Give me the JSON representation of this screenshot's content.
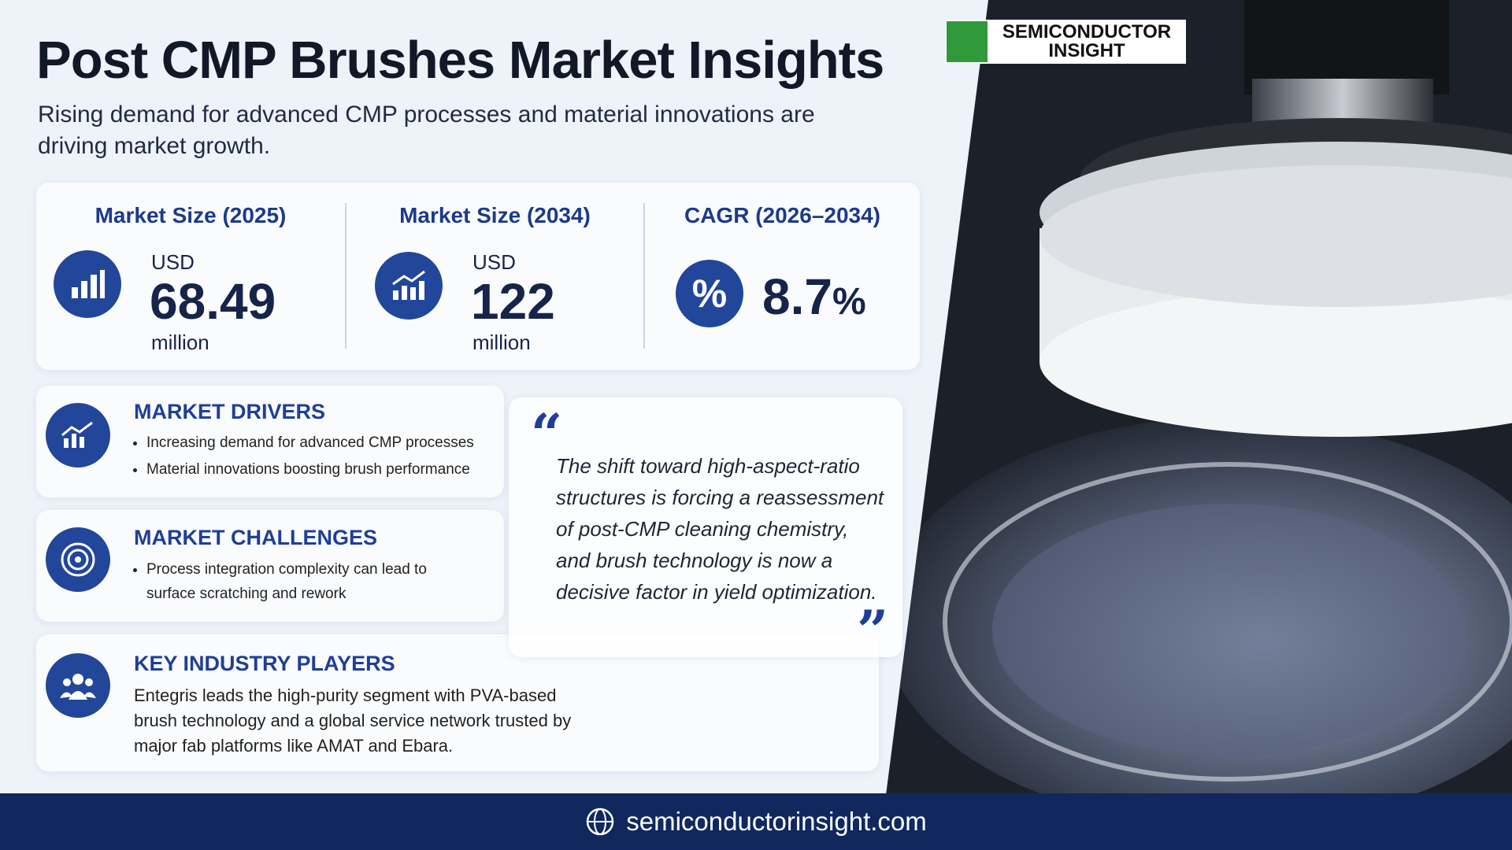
{
  "header": {
    "title": "Post CMP Brushes Market Insights",
    "subtitle": "Rising demand for advanced CMP processes and material innovations are driving market growth."
  },
  "logo": {
    "lines": [
      "SEMICONDUCTOR",
      "INSIGHT"
    ]
  },
  "stats": [
    {
      "label": "Market Size (2025)",
      "prefix": "USD",
      "value": "68.49",
      "unit": "million"
    },
    {
      "label": "Market Size (2034)",
      "prefix": "USD",
      "value": "122",
      "unit": "million"
    },
    {
      "label": "CAGR (2026–2034)",
      "icon": "%",
      "value": "8.7",
      "unit": "%"
    }
  ],
  "drivers": {
    "title": "MARKET DRIVERS",
    "items": [
      "Increasing demand for advanced CMP processes",
      "Material innovations boosting brush performance"
    ]
  },
  "challenges": {
    "title": "MARKET CHALLENGES",
    "items": [
      "Process integration complexity can lead to surface scratching and rework"
    ]
  },
  "players": {
    "title": "KEY INDUSTRY PLAYERS",
    "text": "Entegris leads the high-purity segment with PVA-based brush technology and a global service network trusted by major fab platforms like AMAT and Ebara."
  },
  "quote": {
    "text": "The shift toward high-aspect-ratio structures is forcing a reassessment of post-CMP cleaning chemistry, and brush technology is now a decisive factor in yield optimization."
  },
  "footer": {
    "url": "semiconductorinsight.com"
  }
}
